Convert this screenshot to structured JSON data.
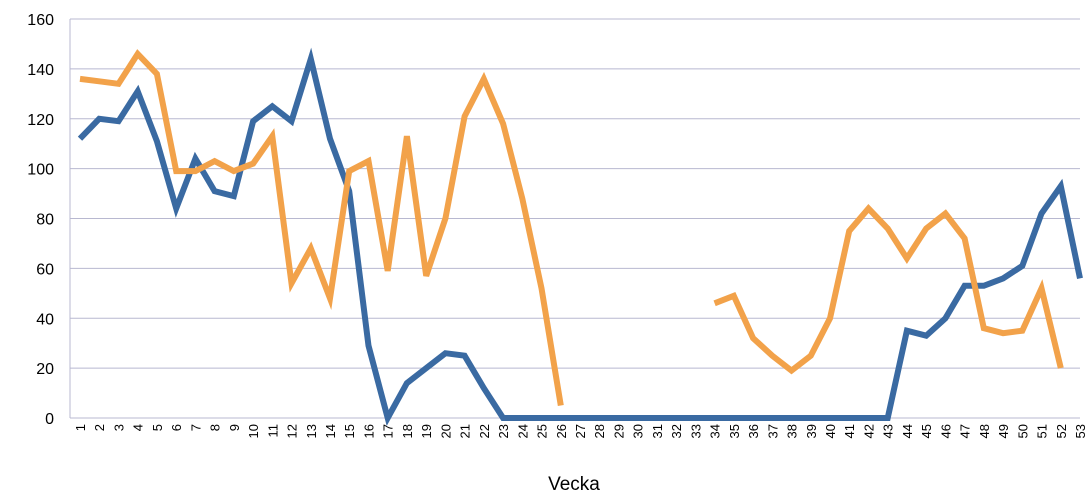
{
  "chart_data": {
    "type": "line",
    "title": "",
    "xlabel": "Vecka",
    "ylabel": "",
    "ylim": [
      0,
      160
    ],
    "yticks": [
      0,
      20,
      40,
      60,
      80,
      100,
      120,
      140,
      160
    ],
    "grid": true,
    "legend": "none",
    "categories": [
      "1",
      "2",
      "3",
      "4",
      "5",
      "6",
      "7",
      "8",
      "9",
      "10",
      "11",
      "12",
      "13",
      "14",
      "15",
      "16",
      "17",
      "18",
      "19",
      "20",
      "21",
      "22",
      "23",
      "24",
      "25",
      "26",
      "27",
      "28",
      "29",
      "30",
      "31",
      "32",
      "33",
      "34",
      "35",
      "36",
      "37",
      "38",
      "39",
      "40",
      "41",
      "42",
      "43",
      "44",
      "45",
      "46",
      "47",
      "48",
      "49",
      "50",
      "51",
      "52",
      "53"
    ],
    "series": [
      {
        "color": "#3a6aa2",
        "values": [
          112,
          120,
          119,
          131,
          111,
          84,
          104,
          91,
          89,
          119,
          125,
          119,
          144,
          112,
          91,
          29,
          0,
          14,
          20,
          26,
          25,
          12,
          0,
          0,
          0,
          0,
          0,
          0,
          0,
          0,
          0,
          0,
          0,
          0,
          0,
          0,
          0,
          0,
          0,
          0,
          0,
          0,
          0,
          35,
          33,
          40,
          53,
          53,
          56,
          61,
          82,
          93,
          56
        ]
      },
      {
        "color": "#f2a24a",
        "values": [
          136,
          135,
          134,
          146,
          138,
          99,
          99,
          103,
          99,
          102,
          113,
          54,
          68,
          48,
          99,
          103,
          59,
          113,
          57,
          80,
          121,
          136,
          118,
          88,
          52,
          5,
          null,
          null,
          null,
          null,
          null,
          null,
          null,
          46,
          49,
          32,
          25,
          19,
          25,
          40,
          75,
          84,
          76,
          64,
          76,
          82,
          72,
          36,
          34,
          35,
          52,
          20,
          null
        ]
      }
    ]
  }
}
